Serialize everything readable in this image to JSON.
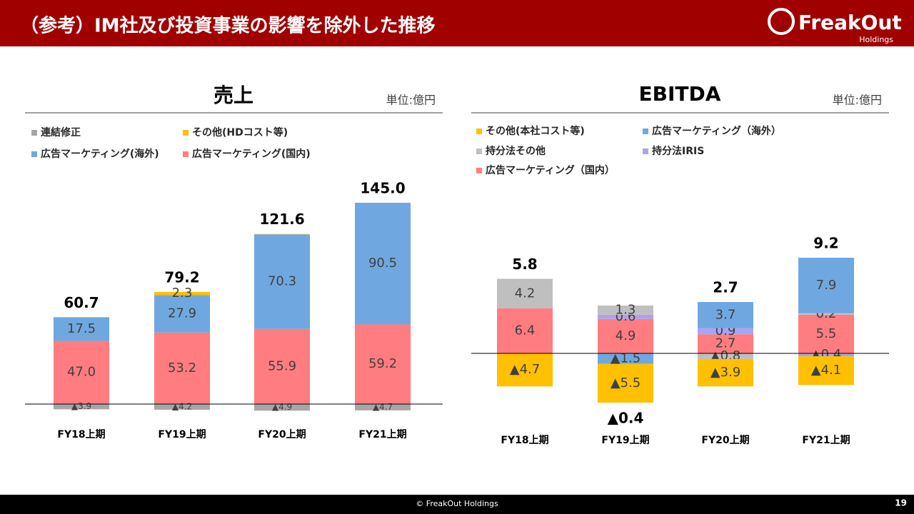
{
  "header": {
    "title": "（参考）IM社及び投資事業の影響を除外した推移",
    "logo": "FreakOut",
    "logo_sub": "Holdings"
  },
  "footer": {
    "copyright": "© FreakOut Holdings",
    "page": "19"
  },
  "chart_data": [
    {
      "type": "bar",
      "stacked": true,
      "title": "売上",
      "unit": "単位:億円",
      "categories": [
        "FY18上期",
        "FY19上期",
        "FY20上期",
        "FY21上期"
      ],
      "series": [
        {
          "name": "連結修正",
          "color": "#a6a6a6",
          "values": [
            -3.9,
            -4.2,
            -4.9,
            -4.7
          ],
          "value_labels": [
            "▲3.9",
            "▲4.2",
            "▲4.9",
            "▲4.7"
          ]
        },
        {
          "name": "その他(HDコスト等)",
          "color": "#ffc000",
          "values": [
            0.1,
            2.3,
            0.3,
            0
          ],
          "value_labels": [
            null,
            "2.3",
            null,
            null
          ]
        },
        {
          "name": "広告マーケティング(海外)",
          "color": "#6fa8e0",
          "values": [
            17.5,
            27.9,
            70.3,
            90.5
          ],
          "value_labels": [
            "17.5",
            "27.9",
            "70.3",
            "90.5"
          ]
        },
        {
          "name": "広告マーケティング(国内)",
          "color": "#ff7c80",
          "values": [
            47,
            53.2,
            55.9,
            59.2
          ],
          "value_labels": [
            "47.0",
            "53.2",
            "55.9",
            "59.2"
          ]
        }
      ],
      "totals": {
        "values": [
          60.7,
          79.2,
          121.6,
          145
        ],
        "value_labels": [
          "60.7",
          "79.2",
          "121.6",
          "145.0"
        ]
      }
    },
    {
      "type": "bar",
      "stacked": true,
      "title": "EBITDA",
      "unit": "単位:億円",
      "categories": [
        "FY18上期",
        "FY19上期",
        "FY20上期",
        "FY21上期"
      ],
      "series": [
        {
          "name": "その他(本社コスト等)",
          "color": "#ffc000",
          "values": [
            -4.7,
            -5.5,
            -3.9,
            -4.1
          ],
          "value_labels": [
            "▲4.7",
            "▲5.5",
            "▲3.9",
            "▲4.1"
          ]
        },
        {
          "name": "広告マーケティング（海外）",
          "color": "#6fa8e0",
          "values": [
            null,
            -1.5,
            3.7,
            7.9
          ],
          "value_labels": [
            null,
            "▲1.5",
            "3.7",
            "7.9"
          ]
        },
        {
          "name": "持分法その他",
          "color": "#bfbfbf",
          "values": [
            4.2,
            1.3,
            -0.8,
            0.2
          ],
          "value_labels": [
            "4.2",
            "1.3",
            "▲0.8",
            "0.2"
          ]
        },
        {
          "name": "持分法IRIS",
          "color": "#a9a4f0",
          "values": [
            null,
            0.6,
            0.9,
            -0.4
          ],
          "value_labels": [
            null,
            "0.6",
            "0.9",
            "▲0.4"
          ]
        },
        {
          "name": "広告マーケティング（国内）",
          "color": "#ff7c80",
          "values": [
            6.4,
            4.9,
            2.7,
            5.5
          ],
          "value_labels": [
            "6.4",
            "4.9",
            "2.7",
            "5.5"
          ]
        }
      ],
      "totals": {
        "values": [
          5.8,
          -0.4,
          2.7,
          9.2
        ],
        "value_labels": [
          "5.8",
          "▲0.4",
          "2.7",
          "9.2"
        ]
      }
    }
  ]
}
